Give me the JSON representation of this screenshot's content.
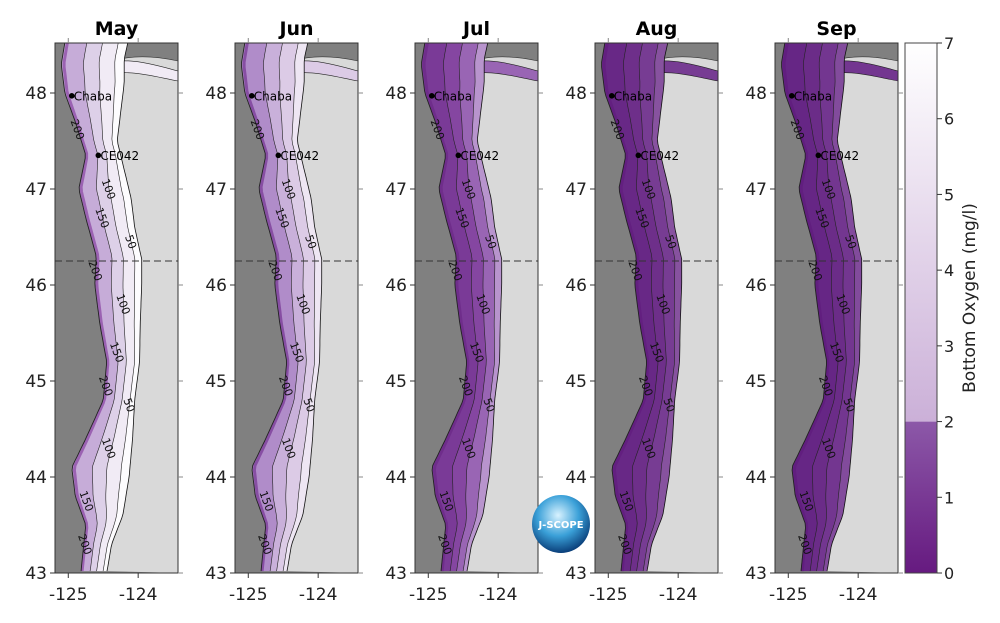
{
  "panels": [
    {
      "month": "May",
      "shelf_colors": [
        "#fdfcfe",
        "#f1ebf5",
        "#ddd0e8",
        "#c6acd8",
        "#9b62b2"
      ]
    },
    {
      "month": "Jun",
      "shelf_colors": [
        "#eee6f3",
        "#dccbe6",
        "#c9b0da",
        "#b08cc9",
        "#874ea3"
      ]
    },
    {
      "month": "Jul",
      "shelf_colors": [
        "#b894cd",
        "#9965b4",
        "#8546a1",
        "#7a3a97",
        "#6f2d8b"
      ]
    },
    {
      "month": "Aug",
      "shelf_colors": [
        "#87529f",
        "#773c93",
        "#6e2f8a",
        "#682886",
        "#631f80"
      ]
    },
    {
      "month": "Sep",
      "shelf_colors": [
        "#824b9c",
        "#733690",
        "#6b2c88",
        "#662685",
        "#611e7f"
      ]
    }
  ],
  "map": {
    "lat_ticks": [
      "48",
      "47",
      "46",
      "45",
      "44",
      "43"
    ],
    "lon_ticks": [
      "-125",
      "-124"
    ],
    "contour_labels": [
      "50",
      "100",
      "150",
      "200"
    ],
    "stations": [
      "Chaba",
      "CE042"
    ],
    "deep_color": "#808080",
    "land_color": "#d9d9d9"
  },
  "colorbar": {
    "label": "Bottom Oxygen (mg/l)",
    "ticks": [
      "0",
      "1",
      "2",
      "3",
      "4",
      "5",
      "6",
      "7"
    ],
    "range": [
      0,
      7
    ],
    "hypoxia_threshold": 2,
    "low_colors": [
      "#661a80",
      "#8c58a8"
    ],
    "high_colors": [
      "#cbb0d8",
      "#ffffff"
    ]
  },
  "logo": {
    "text": "J-SCOPE"
  }
}
